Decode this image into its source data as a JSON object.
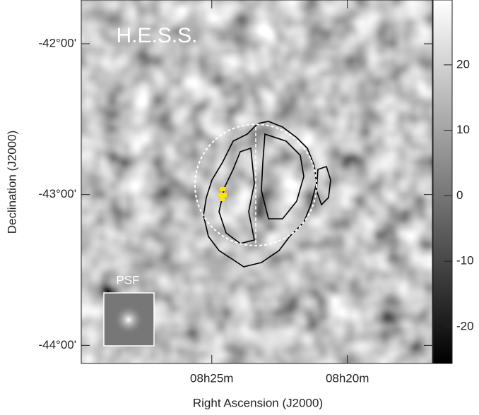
{
  "chart_data": {
    "type": "skymap",
    "x_label": "Right Ascension (J2000)",
    "y_label": "Declination (J2000)",
    "annotations": [
      "H.E.S.S.",
      "PSF"
    ],
    "xlim": [
      8.497,
      8.281
    ],
    "xticks": [
      {
        "value": 8.4167,
        "label": "08h25m"
      },
      {
        "value": 8.3333,
        "label": "08h20m"
      }
    ],
    "ylim": [
      -44.12,
      -41.71
    ],
    "yticks": [
      {
        "value": -42,
        "label": "-42°00'"
      },
      {
        "value": -43,
        "label": "-43°00'"
      },
      {
        "value": -44,
        "label": "-44°00'"
      }
    ],
    "zlim": [
      -25.6,
      29.9
    ],
    "zticks": [
      -20,
      -10,
      0,
      10,
      20
    ],
    "colormap": [
      "#000000",
      "#ffffff"
    ]
  }
}
